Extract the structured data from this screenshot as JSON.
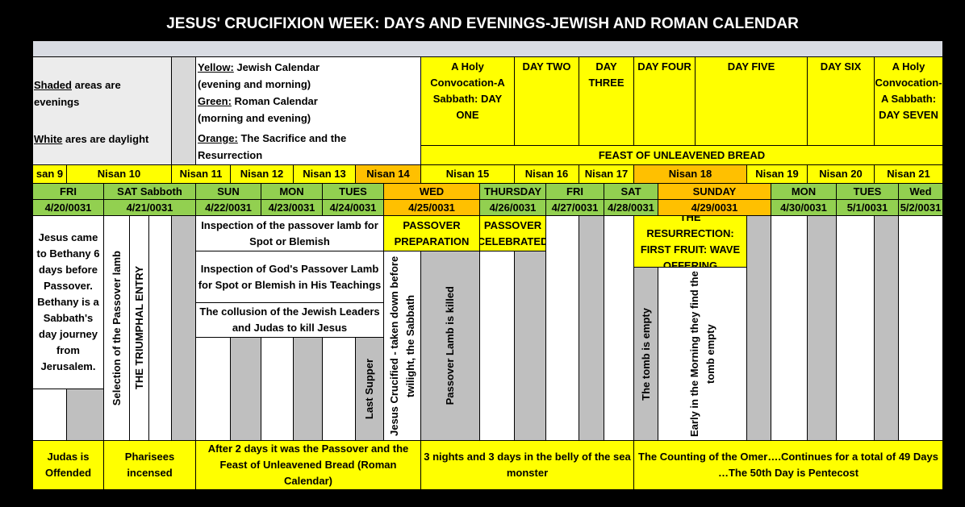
{
  "title": "JESUS' CRUCIFIXION WEEK: DAYS AND EVENINGS-JEWISH AND ROMAN CALENDAR",
  "legend": {
    "shaded": {
      "key": "Shaded",
      "text": "areas are evenings"
    },
    "white": {
      "key": "White",
      "text": "ares are daylight"
    },
    "yellow": {
      "key": "Yellow:",
      "text": "Jewish Calendar (evening and morning)"
    },
    "green": {
      "key": "Green:",
      "text": "Roman Calendar (morning and evening)"
    },
    "orange": {
      "key": "Orange:",
      "text": "The Sacrifice and the Resurrection"
    }
  },
  "day_headers": [
    "A Holy Convocation-A Sabbath: DAY ONE",
    "DAY TWO",
    "DAY THREE",
    "DAY FOUR",
    "DAY FIVE",
    "DAY SIX",
    "A Holy Convocation-A Sabbath: DAY SEVEN"
  ],
  "feast": "FEAST OF UNLEAVENED BREAD",
  "nisan": [
    "san 9",
    "Nisan 10",
    "Nisan 11",
    "Nisan 12",
    "Nisan 13",
    "Nisan 14",
    "Nisan 15",
    "Nisan 16",
    "Nisan  17",
    "Nisan  18",
    "Nisan  19",
    "Nisan  20",
    "Nisan 21"
  ],
  "weekdays": [
    "FRI",
    "SAT Sabboth",
    "SUN",
    "MON",
    "TUES",
    "WED",
    "THURSDAY",
    "FRI",
    "SAT",
    "SUNDAY",
    "MON",
    "TUES",
    "Wed"
  ],
  "dates": [
    "4/20/0031",
    "4/21/0031",
    "4/22/0031",
    "4/23/0031",
    "4/24/0031",
    "4/25/0031",
    "4/26/0031",
    "4/27/0031",
    "4/28/0031",
    "4/29/0031",
    "4/30/0031",
    "5/1/0031",
    "5/2/0031"
  ],
  "events": [
    "Jesus came to Bethany 6 days before Passover. Bethany is a Sabbath's day journey from Jerusalem.",
    "Inspection of the passover lamb for Spot or Blemish",
    "Inspection of God's Passover Lamb for Spot or Blemish in His Teachings",
    "The collusion of the Jewish Leaders and Judas to kill Jesus",
    "PASSOVER PREPARATION",
    "PASSOVER CELEBRATED",
    "THE RESURRECTION: FIRST FRUIT: WAVE OFFERING"
  ],
  "vertical_notes": [
    "Selection of the Passover lamb",
    "THE TRIUMPHAL ENTRY",
    "Last Supper",
    "Jesus Crucified - taken down before twilight, the Sabbath",
    "Passover Lamb is killed",
    "The tomb is empty",
    "Early in the Morning they find the tomb empty"
  ],
  "bottom_notes": [
    "Judas is Offended",
    "Pharisees incensed",
    "After 2 days it was the Passover and the Feast of Unleavened Bread (Roman Calendar)",
    "3 nights and 3 days in the belly of the sea monster",
    "The Counting of the Omer….Continues for a total of 49 Days …The 50th Day is Pentecost"
  ]
}
